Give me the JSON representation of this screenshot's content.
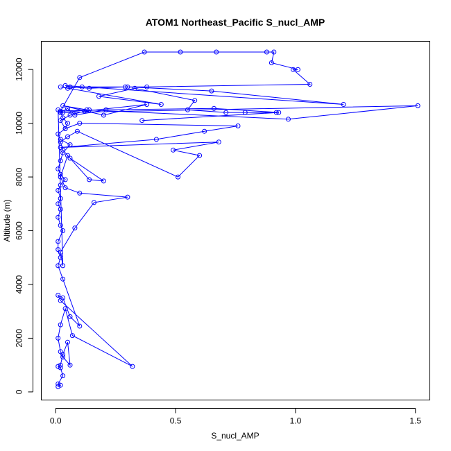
{
  "chart_data": {
    "type": "scatter",
    "title": "ATOM1 Northeast_Pacific S_nucl_AMP",
    "xlabel": "S_nucl_AMP",
    "ylabel": "Altitude (m)",
    "xlim": [
      -0.06,
      1.56
    ],
    "ylim": [
      -300,
      13050
    ],
    "xticks": [
      0.0,
      0.5,
      1.0,
      1.5
    ],
    "xtick_labels": [
      "0.0",
      "0.5",
      "1.0",
      "1.5"
    ],
    "yticks": [
      0,
      2000,
      4000,
      6000,
      8000,
      10000,
      12000
    ],
    "ytick_labels": [
      "0",
      "2000",
      "4000",
      "6000",
      "8000",
      "10000",
      "12000"
    ],
    "color": "#0000ff",
    "grid": false,
    "legend": "none",
    "series": [
      {
        "x": [
          0.01,
          0.02,
          0.01,
          0.03,
          0.02,
          0.01,
          0.02,
          0.03,
          0.05,
          0.06,
          0.03,
          0.02,
          0.01,
          0.02,
          0.04,
          0.07,
          0.32,
          0.02,
          0.01,
          0.03,
          0.06,
          0.1,
          0.03,
          0.01,
          0.02,
          0.01,
          0.01,
          0.03,
          0.02,
          0.01,
          0.02,
          0.01,
          0.02,
          0.01,
          0.02,
          0.04,
          0.02,
          0.01,
          0.02,
          0.03,
          0.06,
          0.02,
          0.01,
          0.04,
          0.05,
          0.03,
          0.02,
          0.01,
          0.03,
          0.02,
          0.08,
          0.16,
          0.3,
          0.1,
          0.04,
          0.02,
          0.05,
          0.14,
          0.2,
          0.06,
          0.03,
          0.02,
          0.05,
          0.09,
          0.51,
          0.6,
          0.49,
          0.68,
          0.02,
          0.42,
          0.62,
          0.76,
          0.1,
          0.04,
          0.02,
          0.06,
          0.12,
          0.38,
          0.2,
          0.03,
          0.13,
          0.97,
          1.51,
          0.02,
          0.05,
          0.08,
          0.21,
          0.66,
          0.93,
          0.36,
          0.92,
          0.79,
          0.71,
          0.55,
          0.58,
          0.33,
          0.18,
          0.44,
          0.02,
          0.05,
          0.11,
          0.3,
          0.65,
          1.2,
          0.04,
          0.06,
          0.14,
          0.29,
          0.38,
          1.06,
          0.99,
          1.01,
          0.9,
          0.91,
          0.88,
          0.67,
          0.52,
          0.37,
          0.1,
          0.02,
          0.14,
          0.03
        ],
        "y": [
          200,
          250,
          300,
          600,
          900,
          950,
          1000,
          1400,
          1850,
          1000,
          1300,
          1500,
          2000,
          2500,
          3100,
          2100,
          950,
          3400,
          3600,
          3500,
          2800,
          2450,
          4200,
          4700,
          5000,
          5300,
          5600,
          6000,
          6200,
          6500,
          6800,
          7000,
          7200,
          7500,
          7700,
          7900,
          8100,
          8300,
          8600,
          8900,
          9200,
          9400,
          9600,
          9800,
          10000,
          10200,
          10400,
          10500,
          4700,
          5200,
          6100,
          7050,
          7250,
          7400,
          7600,
          8000,
          8800,
          7900,
          7850,
          8700,
          9000,
          9300,
          9500,
          9700,
          8000,
          8800,
          9000,
          9300,
          9100,
          9400,
          9700,
          9900,
          10000,
          9800,
          10100,
          10300,
          10450,
          10700,
          10300,
          10650,
          10500,
          10150,
          10650,
          10400,
          10550,
          10300,
          10500,
          10550,
          10400,
          10100,
          10400,
          10400,
          10400,
          10500,
          10850,
          11300,
          11000,
          10700,
          11350,
          11300,
          11350,
          11350,
          11200,
          10700,
          11400,
          11350,
          11300,
          11350,
          11350,
          11450,
          12000,
          12000,
          12250,
          12650,
          12650,
          12650,
          12650,
          12650,
          11700,
          10450,
          10500,
          10400
        ]
      }
    ]
  }
}
